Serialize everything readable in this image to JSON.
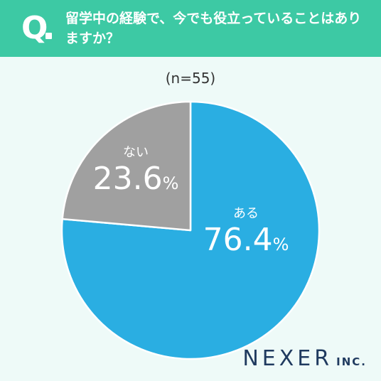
{
  "header": {
    "q_mark": "Q",
    "question": "留学中の経験で、今でも役立っていることはありますか？"
  },
  "sample_note": "(n=55)",
  "chart_data": {
    "type": "pie",
    "categories": [
      "ある",
      "ない"
    ],
    "values": [
      76.4,
      23.6
    ],
    "value_labels": [
      "76.4",
      "23.6"
    ],
    "unit": "%",
    "colors": [
      "#2aaee2",
      "#a0a0a0"
    ],
    "start": "12 o'clock",
    "direction": "clockwise"
  },
  "logo": {
    "main": "NEXER",
    "sub": "INC."
  }
}
